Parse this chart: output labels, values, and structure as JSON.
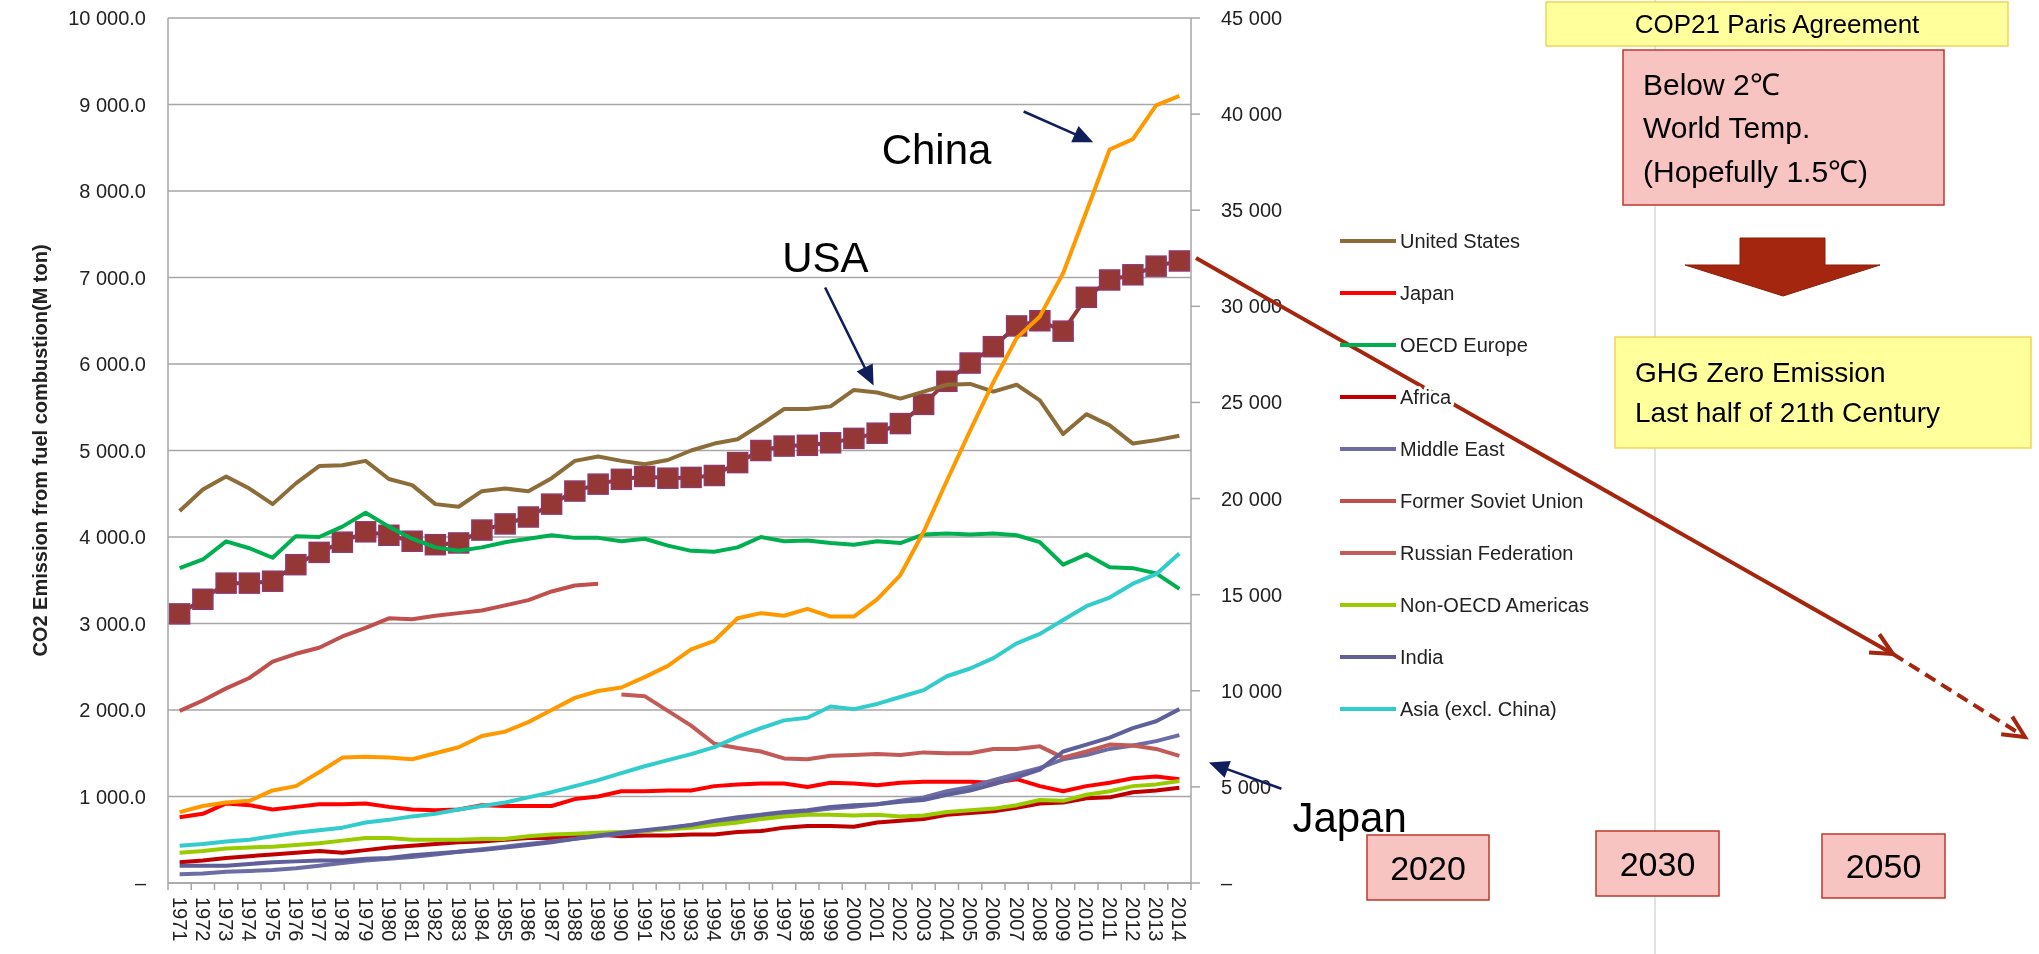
{
  "chart_data": {
    "type": "line",
    "ylabel": "CO2 Emission from fuel combustion(M ton)",
    "categories": [
      "1971",
      "1972",
      "1973",
      "1974",
      "1975",
      "1976",
      "1977",
      "1978",
      "1979",
      "1980",
      "1981",
      "1982",
      "1983",
      "1984",
      "1985",
      "1986",
      "1987",
      "1988",
      "1989",
      "1990",
      "1991",
      "1992",
      "1993",
      "1994",
      "1995",
      "1996",
      "1997",
      "1998",
      "1999",
      "2000",
      "2001",
      "2002",
      "2003",
      "2004",
      "2005",
      "2006",
      "2007",
      "2008",
      "2009",
      "2010",
      "2011",
      "2012",
      "2013",
      "2014"
    ],
    "ylim": [
      0,
      10000
    ],
    "yticks": [
      {
        "value": 0,
        "label": "–"
      },
      {
        "value": 1000,
        "label": "1 000.0"
      },
      {
        "value": 2000,
        "label": "2 000.0"
      },
      {
        "value": 3000,
        "label": "3 000.0"
      },
      {
        "value": 4000,
        "label": "4 000.0"
      },
      {
        "value": 5000,
        "label": "5 000.0"
      },
      {
        "value": 6000,
        "label": "6 000.0"
      },
      {
        "value": 7000,
        "label": "7 000.0"
      },
      {
        "value": 8000,
        "label": "8 000.0"
      },
      {
        "value": 9000,
        "label": "9 000.0"
      },
      {
        "value": 10000,
        "label": "10 000.0"
      }
    ],
    "y2lim": [
      0,
      45000
    ],
    "y2ticks": [
      {
        "value": 0,
        "label": "–"
      },
      {
        "value": 5000,
        "label": "5 000"
      },
      {
        "value": 10000,
        "label": "10 000"
      },
      {
        "value": 15000,
        "label": "15 000"
      },
      {
        "value": 20000,
        "label": "20 000"
      },
      {
        "value": 25000,
        "label": "25 000"
      },
      {
        "value": 30000,
        "label": "30 000"
      },
      {
        "value": 35000,
        "label": "35 000"
      },
      {
        "value": 40000,
        "label": "40 000"
      },
      {
        "value": 45000,
        "label": "45 000"
      }
    ],
    "grid": "y",
    "legend": "right",
    "marker": "none",
    "line_style": "solid",
    "series": [
      {
        "name": "United States",
        "color": "#8c6d3a",
        "values": [
          4300,
          4550,
          4700,
          4560,
          4380,
          4620,
          4820,
          4830,
          4880,
          4670,
          4600,
          4380,
          4350,
          4530,
          4560,
          4530,
          4680,
          4880,
          4930,
          4880,
          4840,
          4890,
          5000,
          5080,
          5130,
          5300,
          5480,
          5480,
          5510,
          5700,
          5670,
          5600,
          5680,
          5760,
          5770,
          5680,
          5760,
          5580,
          5190,
          5420,
          5290,
          5080,
          5120,
          5170
        ]
      },
      {
        "name": "Japan",
        "color": "#ff0000",
        "values": [
          760,
          800,
          920,
          900,
          850,
          880,
          910,
          910,
          920,
          880,
          850,
          840,
          850,
          900,
          890,
          890,
          890,
          970,
          1000,
          1060,
          1060,
          1070,
          1070,
          1120,
          1140,
          1150,
          1150,
          1110,
          1160,
          1150,
          1130,
          1160,
          1170,
          1170,
          1170,
          1160,
          1200,
          1120,
          1060,
          1120,
          1160,
          1210,
          1230,
          1200
        ]
      },
      {
        "name": "OECD Europe",
        "color": "#00b050",
        "values": [
          3640,
          3740,
          3950,
          3870,
          3760,
          4010,
          4000,
          4120,
          4280,
          4120,
          3980,
          3880,
          3840,
          3880,
          3940,
          3980,
          4020,
          3990,
          3990,
          3950,
          3980,
          3900,
          3840,
          3830,
          3880,
          4000,
          3950,
          3960,
          3930,
          3910,
          3950,
          3930,
          4030,
          4040,
          4030,
          4040,
          4020,
          3940,
          3680,
          3800,
          3650,
          3640,
          3580,
          3400
        ]
      },
      {
        "name": "Africa",
        "color": "#c00000",
        "values": [
          240,
          260,
          290,
          310,
          330,
          350,
          370,
          350,
          380,
          410,
          430,
          450,
          470,
          480,
          500,
          520,
          520,
          540,
          560,
          540,
          550,
          550,
          560,
          560,
          590,
          600,
          640,
          660,
          660,
          650,
          700,
          720,
          740,
          790,
          810,
          830,
          870,
          920,
          930,
          980,
          990,
          1050,
          1070,
          1100
        ]
      },
      {
        "name": "Middle East",
        "color": "#6d6da6",
        "values": [
          100,
          110,
          130,
          140,
          150,
          170,
          200,
          230,
          260,
          280,
          300,
          330,
          360,
          390,
          420,
          450,
          480,
          510,
          540,
          570,
          600,
          630,
          670,
          700,
          730,
          770,
          800,
          830,
          860,
          880,
          910,
          950,
          990,
          1060,
          1110,
          1190,
          1260,
          1330,
          1430,
          1480,
          1550,
          1590,
          1640,
          1710
        ]
      },
      {
        "name": "Former Soviet Union",
        "color": "#c0504d",
        "values": [
          1990,
          2110,
          2250,
          2370,
          2560,
          2650,
          2720,
          2850,
          2950,
          3060,
          3050,
          3090,
          3120,
          3150,
          3210,
          3270,
          3370,
          3440,
          3460,
          null,
          null,
          null,
          null,
          null,
          null,
          null,
          null,
          null,
          null,
          null,
          null,
          null,
          null,
          null,
          null,
          null,
          null,
          null,
          null,
          null,
          null,
          null,
          null,
          null
        ]
      },
      {
        "name": "Russian Federation",
        "color": "#c35a57",
        "values": [
          null,
          null,
          null,
          null,
          null,
          null,
          null,
          null,
          null,
          null,
          null,
          null,
          null,
          null,
          null,
          null,
          null,
          null,
          null,
          2180,
          2160,
          1990,
          1820,
          1610,
          1560,
          1520,
          1440,
          1430,
          1470,
          1480,
          1490,
          1480,
          1510,
          1500,
          1500,
          1550,
          1550,
          1580,
          1450,
          1520,
          1600,
          1590,
          1550,
          1470
        ]
      },
      {
        "name": "Non-OECD Americas",
        "color": "#99cc00",
        "values": [
          350,
          370,
          400,
          410,
          420,
          440,
          460,
          490,
          520,
          520,
          500,
          500,
          500,
          510,
          510,
          540,
          560,
          570,
          580,
          590,
          600,
          620,
          640,
          670,
          700,
          740,
          770,
          790,
          790,
          780,
          790,
          770,
          780,
          820,
          840,
          860,
          900,
          960,
          950,
          1020,
          1060,
          1120,
          1140,
          1180
        ]
      },
      {
        "name": "India",
        "color": "#5f5f9a",
        "values": [
          200,
          200,
          200,
          220,
          240,
          250,
          260,
          260,
          280,
          290,
          320,
          340,
          360,
          380,
          410,
          440,
          470,
          510,
          550,
          580,
          610,
          640,
          670,
          720,
          760,
          790,
          820,
          840,
          880,
          900,
          910,
          940,
          960,
          1020,
          1070,
          1140,
          1220,
          1310,
          1520,
          1600,
          1680,
          1790,
          1870,
          2010
        ]
      },
      {
        "name": "Asia (excl. China)",
        "color": "#33cccc",
        "values": [
          430,
          450,
          480,
          500,
          540,
          580,
          610,
          640,
          700,
          730,
          770,
          800,
          850,
          890,
          930,
          990,
          1050,
          1120,
          1190,
          1270,
          1350,
          1420,
          1490,
          1570,
          1690,
          1790,
          1880,
          1910,
          2040,
          2010,
          2070,
          2150,
          2230,
          2390,
          2480,
          2600,
          2770,
          2880,
          3040,
          3200,
          3300,
          3460,
          3570,
          3810
        ]
      },
      {
        "color": "#ff9900",
        "values": [
          820,
          890,
          930,
          950,
          1070,
          1120,
          1280,
          1450,
          1460,
          1450,
          1430,
          1500,
          1570,
          1700,
          1750,
          1860,
          2000,
          2140,
          2220,
          2260,
          2380,
          2510,
          2700,
          2800,
          3060,
          3120,
          3090,
          3170,
          3080,
          3080,
          3280,
          3560,
          4060,
          4650,
          5230,
          5790,
          6300,
          6550,
          7050,
          7760,
          8480,
          8600,
          8990,
          9100
        ]
      },
      {
        "color": "#953735",
        "axis": "y2",
        "marker": "square",
        "values": [
          14000,
          14760,
          15600,
          15600,
          15700,
          16560,
          17200,
          17730,
          18270,
          18090,
          17780,
          17600,
          17690,
          18360,
          18680,
          19040,
          19710,
          20390,
          20750,
          21000,
          21150,
          21060,
          21100,
          21200,
          21870,
          22500,
          22730,
          22770,
          22900,
          23130,
          23400,
          23900,
          24900,
          26100,
          27050,
          27900,
          28980,
          29250,
          28710,
          30470,
          31370,
          31640,
          32090,
          32360
        ]
      }
    ],
    "annotations": [
      {
        "text": "China",
        "x": "2011",
        "y": 8480
      },
      {
        "text": "USA",
        "x": "2001",
        "y": 5670
      },
      {
        "text": "Japan",
        "x": "2014",
        "y": 1470
      },
      "COP21 Paris Agreement",
      "Below 2℃\nWorld Temp.\n(Hopefully 1.5℃)",
      "GHG Zero Emission\nLast half of 21th Century",
      "2020",
      "2030",
      "2050"
    ]
  }
}
